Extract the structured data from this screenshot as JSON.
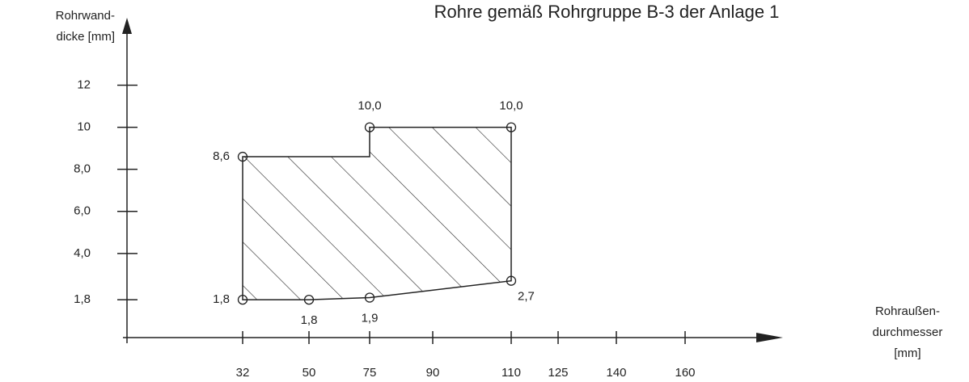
{
  "chart_data": {
    "type": "polygon",
    "title": "Rohre gemäß Rohrgruppe B-3 der Anlage 1",
    "y_label": [
      "Rohrwand-",
      "dicke [mm]"
    ],
    "x_label": [
      "Rohraußen-",
      "durchmesser",
      "[mm]"
    ],
    "xticks": [
      32,
      50,
      75,
      90,
      110,
      125,
      140,
      160
    ],
    "yticks": [
      {
        "value": 1.8,
        "label": "1,8"
      },
      {
        "value": 4.0,
        "label": "4,0"
      },
      {
        "value": 6.0,
        "label": "6,0"
      },
      {
        "value": 8.0,
        "label": "8,0"
      },
      10,
      12
    ],
    "ylim": [
      0,
      14.9
    ],
    "color": "#222222",
    "hatch": true,
    "outline": {
      "x": [
        32,
        50,
        75,
        110,
        110,
        75,
        75,
        32
      ],
      "y": [
        1.8,
        1.8,
        1.9,
        2.7,
        10,
        10,
        8.6,
        8.6
      ]
    },
    "points": {
      "x": [
        32,
        75,
        110,
        32,
        50,
        75,
        110
      ],
      "y": [
        8.6,
        10,
        10,
        1.8,
        1.8,
        1.9,
        2.7
      ],
      "value_labels": [
        "8,6",
        "10,0",
        "10,0",
        "1,8",
        "1,8",
        "1,9",
        "2,7"
      ]
    }
  }
}
